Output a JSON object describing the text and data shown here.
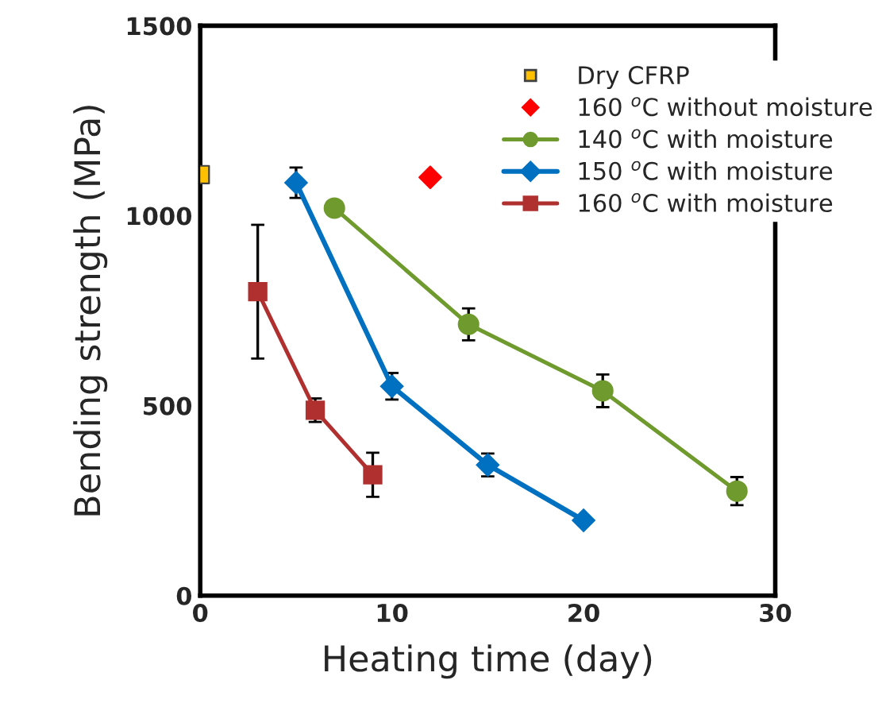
{
  "chart_data": {
    "type": "line",
    "xlabel": "Heating time (day)",
    "ylabel": "Bending strength (MPa)",
    "xlim": [
      0,
      30
    ],
    "xticks": [
      0,
      10,
      20,
      30
    ],
    "ylim": [
      0,
      1500
    ],
    "yticks": [
      0,
      500,
      1000,
      1500
    ],
    "grid": false,
    "legend": "top right",
    "series": [
      {
        "name": "Dry CFRP",
        "type": "scatter",
        "marker": "square",
        "color": "#ffc000",
        "x": [
          0
        ],
        "values": [
          1108
        ]
      },
      {
        "name": "160 $^{o}$C without moisture",
        "type": "scatter",
        "marker": "diamond",
        "color": "#ff0000",
        "x": [
          12
        ],
        "values": [
          1101
        ]
      },
      {
        "name": "140 $^{o}$C with moisture",
        "marker": "circle",
        "color": "#6f9a2e",
        "x": [
          7,
          14,
          21,
          28
        ],
        "values": [
          1020,
          714,
          539,
          275
        ],
        "errors": [
          null,
          42,
          43,
          37
        ]
      },
      {
        "name": "150 $^{o}$C with moisture",
        "marker": "diamond",
        "color": "#0070c0",
        "x": [
          5,
          10,
          15,
          20
        ],
        "values": [
          1087,
          551,
          344,
          198
        ],
        "errors": [
          40,
          35,
          30,
          null
        ]
      },
      {
        "name": "160 $^{o}$C with moisture",
        "marker": "square",
        "color": "#b03030",
        "x": [
          3,
          6,
          9
        ],
        "values": [
          800,
          488,
          318
        ],
        "errors": [
          176,
          31,
          58
        ]
      }
    ]
  }
}
